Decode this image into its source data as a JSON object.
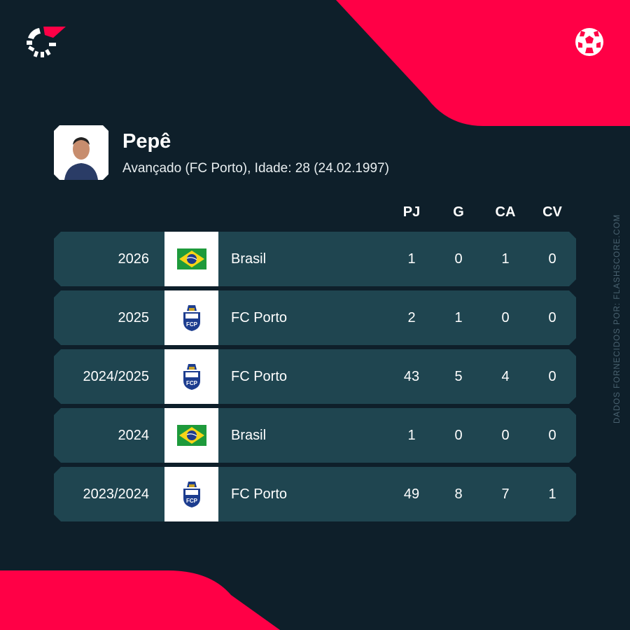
{
  "brand": {
    "accent": "#ff0046",
    "background": "#0e1f2a",
    "row": "#1f4550",
    "logo_icon": "flashscore-logo",
    "sport_icon": "football-icon"
  },
  "player": {
    "name": "Pepê",
    "details": "Avançado (FC Porto), Idade: 28 (24.02.1997)"
  },
  "columns": [
    "PJ",
    "G",
    "CA",
    "CV"
  ],
  "rows": [
    {
      "season": "2026",
      "team": "Brasil",
      "crest": "brazil-flag",
      "stats": [
        "1",
        "0",
        "1",
        "0"
      ]
    },
    {
      "season": "2025",
      "team": "FC Porto",
      "crest": "fc-porto-crest",
      "stats": [
        "2",
        "1",
        "0",
        "0"
      ]
    },
    {
      "season": "2024/2025",
      "team": "FC Porto",
      "crest": "fc-porto-crest",
      "stats": [
        "43",
        "5",
        "4",
        "0"
      ]
    },
    {
      "season": "2024",
      "team": "Brasil",
      "crest": "brazil-flag",
      "stats": [
        "1",
        "0",
        "0",
        "0"
      ]
    },
    {
      "season": "2023/2024",
      "team": "FC Porto",
      "crest": "fc-porto-crest",
      "stats": [
        "49",
        "8",
        "7",
        "1"
      ]
    }
  ],
  "credit": "DADOS FORNECIDOS POR: FLASHSCORE.COM"
}
